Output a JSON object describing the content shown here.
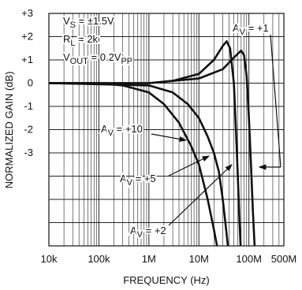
{
  "chart_data": {
    "type": "line",
    "xlabel": "FREQUENCY (Hz)",
    "ylabel": "NORMALIZED GAIN (dB)",
    "xscale": "log",
    "xlim": [
      10000,
      500000000
    ],
    "xticks": [
      {
        "value": 10000,
        "label": "10k"
      },
      {
        "value": 100000,
        "label": "100k"
      },
      {
        "value": 1000000,
        "label": "1M"
      },
      {
        "value": 10000000,
        "label": "10M"
      },
      {
        "value": 100000000,
        "label": "100M"
      },
      {
        "value": 500000000,
        "label": "500M"
      }
    ],
    "ylim": [
      -7,
      3
    ],
    "yticks": [
      {
        "value": 3,
        "label": "+3"
      },
      {
        "value": 2,
        "label": "+2"
      },
      {
        "value": 1,
        "label": "+1"
      },
      0,
      -1,
      -2,
      -3
    ],
    "ygrid": [
      -4,
      -5,
      -6
    ],
    "grid": true,
    "minor_grid": true,
    "annotations": [
      [
        "V",
        "S",
        " = ±1.5V"
      ],
      [
        "R",
        "L",
        " = 2k"
      ],
      [
        "V",
        "OUT",
        " = 0.2V",
        "PP"
      ]
    ],
    "series": [
      {
        "label": [
          "A",
          "V",
          " = +1"
        ],
        "color": "#111111",
        "x": [
          10000,
          1000000,
          10000000,
          30000000,
          50000000,
          70000000,
          80000000,
          90000000,
          100000000,
          110000000,
          120000000,
          130000000
        ],
        "values": [
          0,
          0,
          0.2,
          0.6,
          1.1,
          1.4,
          1.2,
          0.3,
          -1.5,
          -3.5,
          -5.5,
          -7
        ]
      },
      {
        "label": [
          "A",
          "V",
          " = +10"
        ],
        "color": "#111111",
        "x": [
          10000,
          100000,
          300000,
          1000000,
          2000000,
          4000000,
          7000000,
          10000000,
          15000000,
          20000000,
          23000000
        ],
        "values": [
          0,
          0,
          -0.1,
          -0.4,
          -0.9,
          -1.7,
          -2.7,
          -3.5,
          -5,
          -6.3,
          -7
        ]
      },
      {
        "label": [
          "A",
          "V",
          " = +5"
        ],
        "color": "#111111",
        "x": [
          10000,
          1000000,
          3000000,
          6000000,
          10000000,
          15000000,
          20000000,
          25000000,
          30000000,
          35000000,
          38000000
        ],
        "values": [
          0,
          -0.1,
          -0.4,
          -0.9,
          -1.5,
          -2.3,
          -3,
          -3.8,
          -5,
          -6.3,
          -7
        ]
      },
      {
        "label": [
          "A",
          "V",
          " = +2"
        ],
        "color": "#111111",
        "x": [
          10000,
          1000000,
          3000000,
          10000000,
          20000000,
          30000000,
          36000000,
          42000000,
          50000000,
          55000000,
          60000000,
          65000000,
          68000000
        ],
        "values": [
          0,
          0,
          0.1,
          0.4,
          1.0,
          1.6,
          1.8,
          1.5,
          0,
          -2,
          -4,
          -6,
          -7
        ]
      }
    ]
  }
}
